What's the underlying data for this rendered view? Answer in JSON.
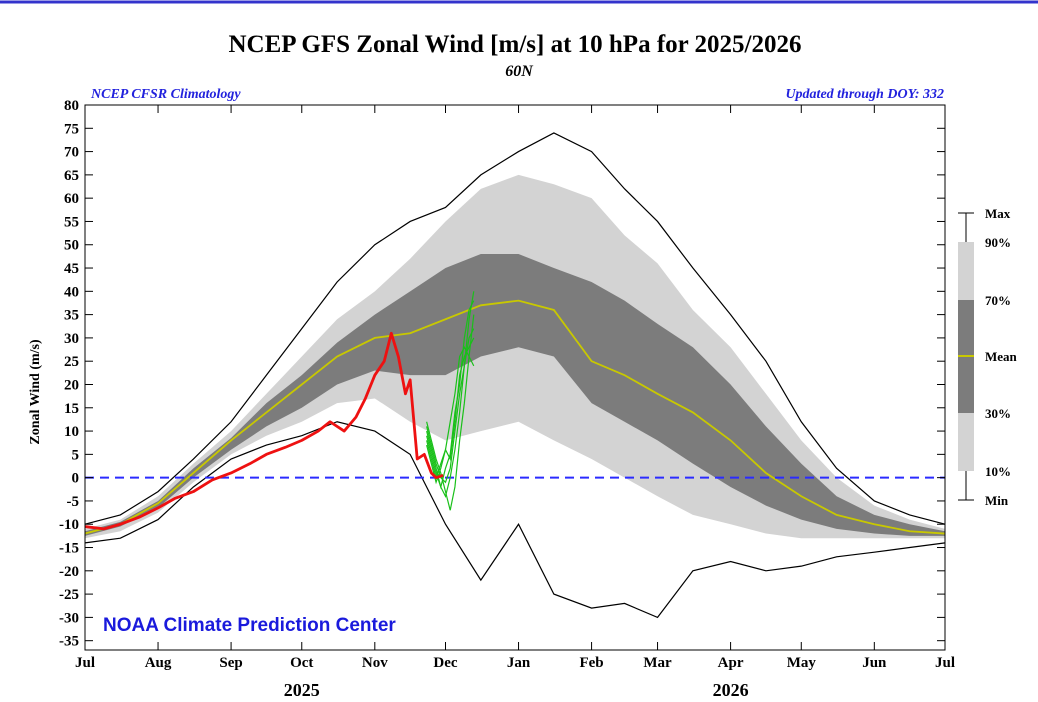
{
  "colors": {
    "frame_line": "#3333cc",
    "band_10_90": "#d3d3d3",
    "band_30_70": "#7c7c7c",
    "mean": "#c8c800",
    "observed": "#ee1111",
    "forecast": "#19c019",
    "zero_line": "#2b2bff",
    "blue_text": "#2222dd"
  },
  "chart_data": {
    "type": "line",
    "title": "NCEP GFS Zonal Wind [m/s] at 10 hPa for 2025/2026",
    "subtitle": "60N",
    "left_note": "NCEP CFSR Climatology",
    "right_note": "Updated through DOY: 332",
    "watermark": "NOAA Climate Prediction Center",
    "ylabel": "Zonal Wind (m/s)",
    "ylim": [
      -37,
      80
    ],
    "yticks": [
      80,
      75,
      70,
      65,
      60,
      55,
      50,
      45,
      40,
      35,
      30,
      25,
      20,
      15,
      10,
      5,
      0,
      -5,
      -10,
      -15,
      -20,
      -25,
      -30,
      -35
    ],
    "xlim": [
      0,
      365
    ],
    "month_ticks": [
      {
        "label": "Jul",
        "day": 0
      },
      {
        "label": "Aug",
        "day": 31
      },
      {
        "label": "Sep",
        "day": 62
      },
      {
        "label": "Oct",
        "day": 92
      },
      {
        "label": "Nov",
        "day": 123
      },
      {
        "label": "Dec",
        "day": 153
      },
      {
        "label": "Jan",
        "day": 184
      },
      {
        "label": "Feb",
        "day": 215
      },
      {
        "label": "Mar",
        "day": 243
      },
      {
        "label": "Apr",
        "day": 274
      },
      {
        "label": "May",
        "day": 304
      },
      {
        "label": "Jun",
        "day": 335
      },
      {
        "label": "Jul",
        "day": 365
      }
    ],
    "year_labels": [
      {
        "label": "2025",
        "day": 92
      },
      {
        "label": "2026",
        "day": 274
      }
    ],
    "legend": [
      "Max",
      "90%",
      "70%",
      "Mean",
      "30%",
      "10%",
      "Min"
    ],
    "x": [
      0,
      15,
      31,
      46,
      62,
      77,
      92,
      107,
      123,
      138,
      153,
      168,
      184,
      199,
      215,
      229,
      243,
      258,
      274,
      289,
      304,
      319,
      335,
      350,
      365
    ],
    "series": [
      {
        "name": "Max",
        "values": [
          -10,
          -8,
          -3,
          4,
          12,
          22,
          32,
          42,
          50,
          55,
          58,
          65,
          70,
          74,
          70,
          62,
          55,
          45,
          35,
          25,
          12,
          2,
          -5,
          -8,
          -10
        ]
      },
      {
        "name": "90%",
        "values": [
          -11,
          -9,
          -4,
          3,
          10,
          18,
          26,
          34,
          40,
          47,
          55,
          62,
          65,
          63,
          60,
          52,
          46,
          36,
          28,
          18,
          8,
          0,
          -6,
          -9,
          -11
        ]
      },
      {
        "name": "70%",
        "values": [
          -11.5,
          -9.5,
          -5,
          2,
          8.5,
          16,
          22,
          29,
          35,
          40,
          45,
          48,
          48,
          45,
          42,
          38,
          33,
          28,
          20,
          11,
          3,
          -4,
          -8,
          -10,
          -11.5
        ]
      },
      {
        "name": "Mean",
        "values": [
          -12,
          -10,
          -5.5,
          1,
          8,
          14,
          20,
          26,
          30,
          31,
          34,
          37,
          38,
          36,
          25,
          22,
          18,
          14,
          8,
          1,
          -4,
          -8,
          -10,
          -11.5,
          -12
        ]
      },
      {
        "name": "30%",
        "values": [
          -12.5,
          -10.5,
          -6.5,
          0,
          6,
          11,
          15,
          20,
          23,
          22,
          22,
          26,
          28,
          26,
          16,
          12,
          8,
          3,
          -2,
          -6,
          -9,
          -11,
          -12,
          -12.5,
          -12.5
        ]
      },
      {
        "name": "10%",
        "values": [
          -13,
          -11.5,
          -7.5,
          -1,
          5,
          9,
          12,
          16,
          17,
          12,
          8,
          10,
          12,
          8,
          4,
          0,
          -4,
          -8,
          -10,
          -12,
          -13,
          -13,
          -13,
          -13,
          -13
        ]
      },
      {
        "name": "Min",
        "values": [
          -14,
          -13,
          -9,
          -2,
          4,
          7,
          9,
          12,
          10,
          5,
          -10,
          -22,
          -10,
          -25,
          -28,
          -27,
          -30,
          -20,
          -18,
          -20,
          -19,
          -17,
          -16,
          -15,
          -14
        ]
      }
    ],
    "observed": {
      "name": "2025 observed",
      "x": [
        0,
        8,
        15,
        23,
        31,
        38,
        46,
        54,
        62,
        70,
        77,
        85,
        92,
        99,
        104,
        110,
        115,
        119,
        123,
        127,
        130,
        133,
        136,
        138,
        141,
        144,
        147,
        149,
        152
      ],
      "values": [
        -10.5,
        -11,
        -10,
        -8.5,
        -6.5,
        -4.5,
        -3,
        -0.5,
        1,
        3,
        5,
        6.5,
        8,
        10,
        12,
        10,
        13,
        17,
        22,
        25,
        31,
        26,
        18,
        21,
        4,
        5,
        1,
        0,
        0.5
      ]
    },
    "forecast": {
      "name": "GFS ensemble forecast",
      "x": [
        145,
        147,
        149,
        151,
        153,
        155,
        157,
        159,
        161,
        163,
        165
      ],
      "members": [
        [
          10,
          6,
          2,
          -2,
          -4,
          0,
          6,
          14,
          24,
          34,
          40
        ],
        [
          8,
          4,
          0,
          3,
          6,
          12,
          18,
          26,
          28,
          26,
          24
        ],
        [
          12,
          8,
          4,
          1,
          -3,
          -7,
          -2,
          8,
          16,
          26,
          35
        ],
        [
          9,
          5,
          1,
          -2,
          2,
          5,
          14,
          20,
          30,
          36,
          38
        ],
        [
          11,
          7,
          3,
          0,
          -1,
          2,
          10,
          18,
          24,
          30,
          32
        ],
        [
          7,
          3,
          -1,
          2,
          6,
          4,
          12,
          22,
          26,
          28,
          30
        ]
      ]
    }
  }
}
